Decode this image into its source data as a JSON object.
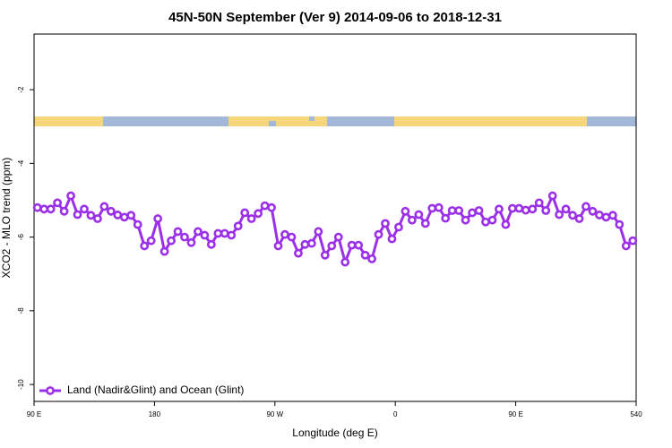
{
  "chart_data": {
    "type": "line",
    "title": "45N-50N September (Ver 9)   2014-09-06 to 2018-12-31",
    "x_label": "Longitude (deg E)",
    "y_label": "XCO2 - MLO trend (ppm)",
    "x": [
      92.5,
      97.5,
      102.5,
      107.5,
      112.5,
      117.5,
      122.5,
      127.5,
      132.5,
      137.5,
      142.5,
      147.5,
      152.5,
      157.5,
      162.5,
      167.5,
      172.5,
      177.5,
      182.5,
      187.5,
      192.5,
      197.5,
      202.5,
      207.5,
      212.5,
      217.5,
      222.5,
      227.5,
      232.5,
      237.5,
      242.5,
      247.5,
      252.5,
      257.5,
      262.5,
      267.5,
      272.5,
      277.5,
      282.5,
      287.5,
      292.5,
      297.5,
      302.5,
      307.5,
      312.5,
      317.5,
      322.5,
      327.5,
      332.5,
      337.5,
      342.5,
      347.5,
      352.5,
      357.5,
      362.5,
      367.5,
      372.5,
      377.5,
      382.5,
      387.5,
      392.5,
      397.5,
      402.5,
      407.5,
      412.5,
      417.5,
      422.5,
      427.5,
      432.5,
      437.5,
      442.5,
      447.5,
      452.5,
      457.5,
      462.5,
      467.5,
      472.5,
      477.5,
      482.5,
      487.5,
      492.5,
      497.5,
      502.5,
      507.5,
      512.5,
      517.5,
      522.5,
      527.5,
      532.5,
      537.5
    ],
    "series": [
      {
        "name": "Land (Nadir&Glint) and Ocean (Glint)",
        "color": "#9b30e8",
        "values": [
          -5.2,
          -5.24,
          -5.24,
          -5.07,
          -5.3,
          -4.88,
          -5.39,
          -5.24,
          -5.41,
          -5.5,
          -5.17,
          -5.3,
          -5.4,
          -5.46,
          -5.41,
          -5.66,
          -6.24,
          -6.1,
          -5.5,
          -6.39,
          -6.1,
          -5.85,
          -6.0,
          -6.15,
          -5.85,
          -5.95,
          -6.2,
          -5.9,
          -5.9,
          -5.95,
          -5.7,
          -5.34,
          -5.5,
          -5.36,
          -5.15,
          -5.2,
          -6.24,
          -5.93,
          -6.0,
          -6.44,
          -6.2,
          -6.17,
          -5.85,
          -6.49,
          -6.24,
          -6.0,
          -6.68,
          -6.22,
          -6.22,
          -6.49,
          -6.59,
          -5.93,
          -5.63,
          -6.05,
          -5.73,
          -5.3,
          -5.54,
          -5.39,
          -5.63,
          -5.22,
          -5.2,
          -5.49,
          -5.28,
          -5.28,
          -5.54,
          -5.34,
          -5.28,
          -5.59,
          -5.54,
          -5.24,
          -5.66,
          -5.22,
          -5.22,
          -5.27,
          -5.24,
          -5.07,
          -5.28,
          -4.88,
          -5.39,
          -5.24,
          -5.41,
          -5.5,
          -5.17,
          -5.3,
          -5.4,
          -5.46,
          -5.41,
          -5.66,
          -6.24,
          -6.1
        ]
      }
    ],
    "xlim": [
      90,
      540
    ],
    "xticks": [
      {
        "value": 90,
        "label": "90 E"
      },
      180,
      {
        "value": 270,
        "label": "90 W"
      },
      {
        "value": 360,
        "label": "0"
      },
      {
        "value": 450,
        "label": "90 E"
      },
      540
    ],
    "ylim": [
      -10.46,
      -0.49
    ],
    "yticks": [
      -10,
      -8,
      -6,
      -4,
      -2
    ],
    "legend": "bottom-left",
    "grid": false
  }
}
